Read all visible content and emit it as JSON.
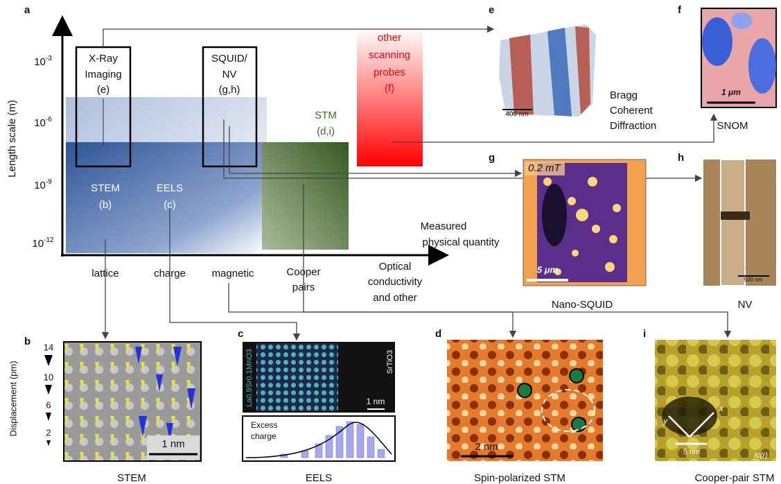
{
  "panel_letters": [
    "a",
    "b",
    "c",
    "d",
    "e",
    "f",
    "g",
    "h",
    "i"
  ],
  "panel_a": {
    "y_axis_label": "Length scale (m)",
    "y_ticks": [
      {
        "base": "10",
        "exp": "-3"
      },
      {
        "base": "10",
        "exp": "-6"
      },
      {
        "base": "10",
        "exp": "-9"
      },
      {
        "base": "10",
        "exp": "-12"
      }
    ],
    "x_axis_label": [
      "Measured",
      "physical quantity"
    ],
    "categories": [
      [
        "lattice"
      ],
      [
        "charge"
      ],
      [
        "magnetic"
      ],
      [
        "Cooper",
        "pairs"
      ],
      [
        "Optical",
        "conductivity",
        "and other"
      ]
    ],
    "techniques": {
      "xray": [
        "X-Ray",
        "Imaging",
        "(e)"
      ],
      "squid": [
        "SQUID/",
        "NV",
        "(g,h)"
      ],
      "other": [
        "other",
        "scanning",
        "probes",
        "(f)"
      ],
      "stm": [
        "STM",
        "(d,i)"
      ],
      "stem": [
        "STEM",
        "(b)"
      ],
      "eels": [
        "EELS",
        "(c)"
      ]
    }
  },
  "panel_b": {
    "axis_label": "Displacement (pm)",
    "ticks": [
      "14",
      "10",
      "6",
      "2"
    ],
    "scale_bar": "1 nm",
    "caption": "STEM"
  },
  "panel_c": {
    "film": "La0.9Sr0.1MnO3",
    "substrate": "SrTiO3",
    "scale_bar": "1 nm",
    "plot_label": [
      "Excess",
      "charge"
    ],
    "caption": "EELS"
  },
  "panel_d": {
    "scale_bar": "2 nm",
    "caption": "Spin-polarized STM"
  },
  "panel_e": {
    "scale_bar": "400 nm",
    "caption": [
      "Bragg",
      "Coherent",
      "Diffraction"
    ]
  },
  "panel_f": {
    "scale_bar": "1 μm",
    "caption": "SNOM"
  },
  "panel_g": {
    "field": "0.2 mT",
    "scale_bar": "5 μm",
    "caption": "Nano-SQUID"
  },
  "panel_h": {
    "scale_bar": "500 nm",
    "caption": "NV"
  },
  "panel_i": {
    "axis_y": "y",
    "axis_x": "x",
    "scale_bar": "5 nm",
    "map_label": "Ic(r)",
    "caption": "Cooper-pair STM"
  }
}
